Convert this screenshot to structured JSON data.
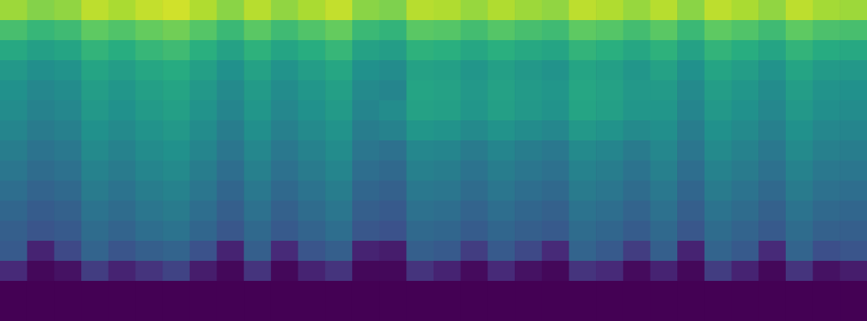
{
  "chart_data": {
    "type": "heatmap",
    "tick_labels": false,
    "zlim": [
      0,
      1
    ],
    "cells": [
      [
        0.85,
        0.81,
        0.83,
        0.9,
        0.87,
        0.91,
        0.93,
        0.88,
        0.82,
        0.89,
        0.83,
        0.87,
        0.91,
        0.82,
        0.8,
        0.89,
        0.88,
        0.84,
        0.88,
        0.85,
        0.83,
        0.9,
        0.88,
        0.84,
        0.89,
        0.82,
        0.9,
        0.87,
        0.83,
        0.9,
        0.86,
        0.85
      ],
      [
        0.7,
        0.66,
        0.68,
        0.75,
        0.72,
        0.76,
        0.78,
        0.73,
        0.67,
        0.74,
        0.68,
        0.72,
        0.76,
        0.67,
        0.65,
        0.74,
        0.73,
        0.69,
        0.73,
        0.7,
        0.68,
        0.75,
        0.73,
        0.69,
        0.74,
        0.67,
        0.75,
        0.72,
        0.68,
        0.75,
        0.71,
        0.7
      ],
      [
        0.6,
        0.56,
        0.58,
        0.65,
        0.62,
        0.66,
        0.68,
        0.63,
        0.57,
        0.64,
        0.58,
        0.62,
        0.66,
        0.57,
        0.55,
        0.64,
        0.63,
        0.59,
        0.63,
        0.6,
        0.58,
        0.65,
        0.63,
        0.59,
        0.64,
        0.57,
        0.65,
        0.62,
        0.58,
        0.65,
        0.61,
        0.6
      ],
      [
        0.53,
        0.49,
        0.51,
        0.58,
        0.55,
        0.59,
        0.61,
        0.56,
        0.5,
        0.57,
        0.51,
        0.55,
        0.59,
        0.5,
        0.48,
        0.57,
        0.56,
        0.52,
        0.56,
        0.53,
        0.51,
        0.58,
        0.56,
        0.52,
        0.57,
        0.5,
        0.58,
        0.55,
        0.51,
        0.58,
        0.54,
        0.53
      ],
      [
        0.5,
        0.46,
        0.48,
        0.55,
        0.52,
        0.56,
        0.58,
        0.53,
        0.47,
        0.54,
        0.48,
        0.52,
        0.56,
        0.47,
        0.45,
        0.58,
        0.57,
        0.53,
        0.57,
        0.54,
        0.52,
        0.59,
        0.57,
        0.53,
        0.54,
        0.47,
        0.55,
        0.52,
        0.48,
        0.55,
        0.51,
        0.5
      ],
      [
        0.48,
        0.44,
        0.46,
        0.53,
        0.5,
        0.54,
        0.56,
        0.51,
        0.45,
        0.52,
        0.46,
        0.5,
        0.54,
        0.45,
        0.48,
        0.57,
        0.56,
        0.52,
        0.56,
        0.53,
        0.51,
        0.58,
        0.56,
        0.52,
        0.52,
        0.45,
        0.53,
        0.5,
        0.46,
        0.53,
        0.49,
        0.48
      ],
      [
        0.45,
        0.41,
        0.43,
        0.5,
        0.47,
        0.51,
        0.53,
        0.48,
        0.42,
        0.49,
        0.43,
        0.47,
        0.51,
        0.42,
        0.44,
        0.52,
        0.51,
        0.47,
        0.51,
        0.48,
        0.46,
        0.53,
        0.51,
        0.47,
        0.49,
        0.42,
        0.5,
        0.47,
        0.43,
        0.5,
        0.46,
        0.45
      ],
      [
        0.42,
        0.38,
        0.4,
        0.47,
        0.44,
        0.48,
        0.5,
        0.45,
        0.39,
        0.46,
        0.4,
        0.44,
        0.48,
        0.39,
        0.37,
        0.46,
        0.45,
        0.41,
        0.45,
        0.42,
        0.4,
        0.47,
        0.45,
        0.41,
        0.46,
        0.39,
        0.47,
        0.44,
        0.4,
        0.47,
        0.43,
        0.42
      ],
      [
        0.39,
        0.35,
        0.37,
        0.44,
        0.41,
        0.45,
        0.47,
        0.42,
        0.36,
        0.43,
        0.37,
        0.41,
        0.45,
        0.36,
        0.34,
        0.43,
        0.42,
        0.38,
        0.42,
        0.39,
        0.37,
        0.44,
        0.42,
        0.38,
        0.43,
        0.36,
        0.44,
        0.41,
        0.37,
        0.44,
        0.4,
        0.39
      ],
      [
        0.36,
        0.32,
        0.34,
        0.41,
        0.38,
        0.42,
        0.44,
        0.39,
        0.33,
        0.4,
        0.34,
        0.38,
        0.42,
        0.33,
        0.31,
        0.4,
        0.39,
        0.35,
        0.39,
        0.36,
        0.34,
        0.41,
        0.39,
        0.35,
        0.4,
        0.33,
        0.41,
        0.38,
        0.34,
        0.41,
        0.37,
        0.36
      ],
      [
        0.33,
        0.29,
        0.31,
        0.38,
        0.35,
        0.39,
        0.41,
        0.36,
        0.3,
        0.37,
        0.31,
        0.35,
        0.39,
        0.3,
        0.28,
        0.37,
        0.36,
        0.32,
        0.36,
        0.33,
        0.31,
        0.38,
        0.36,
        0.32,
        0.37,
        0.3,
        0.38,
        0.35,
        0.31,
        0.38,
        0.34,
        0.33
      ],
      [
        0.3,
        0.26,
        0.28,
        0.35,
        0.32,
        0.36,
        0.38,
        0.33,
        0.27,
        0.34,
        0.28,
        0.32,
        0.36,
        0.27,
        0.25,
        0.34,
        0.33,
        0.29,
        0.33,
        0.3,
        0.28,
        0.35,
        0.33,
        0.29,
        0.34,
        0.27,
        0.35,
        0.32,
        0.28,
        0.35,
        0.31,
        0.3
      ],
      [
        0.28,
        0.1,
        0.22,
        0.32,
        0.26,
        0.3,
        0.32,
        0.25,
        0.1,
        0.3,
        0.12,
        0.26,
        0.3,
        0.1,
        0.08,
        0.3,
        0.28,
        0.18,
        0.28,
        0.22,
        0.12,
        0.32,
        0.28,
        0.18,
        0.3,
        0.1,
        0.32,
        0.28,
        0.12,
        0.32,
        0.24,
        0.26
      ],
      [
        0.12,
        0.02,
        0.05,
        0.18,
        0.1,
        0.15,
        0.2,
        0.08,
        0.02,
        0.15,
        0.02,
        0.1,
        0.15,
        0.02,
        0.02,
        0.15,
        0.1,
        0.03,
        0.12,
        0.05,
        0.02,
        0.15,
        0.12,
        0.03,
        0.1,
        0.02,
        0.18,
        0.1,
        0.02,
        0.15,
        0.05,
        0.08
      ],
      [
        0,
        0,
        0,
        0,
        0,
        0,
        0,
        0,
        0,
        0,
        0,
        0,
        0,
        0,
        0,
        0,
        0,
        0,
        0,
        0,
        0,
        0,
        0,
        0,
        0,
        0,
        0,
        0,
        0,
        0,
        0,
        0
      ],
      [
        0,
        0,
        0,
        0,
        0,
        0,
        0,
        0,
        0,
        0,
        0,
        0,
        0,
        0,
        0,
        0,
        0,
        0,
        0,
        0,
        0,
        0,
        0,
        0,
        0,
        0,
        0,
        0,
        0,
        0,
        0,
        0
      ]
    ]
  }
}
